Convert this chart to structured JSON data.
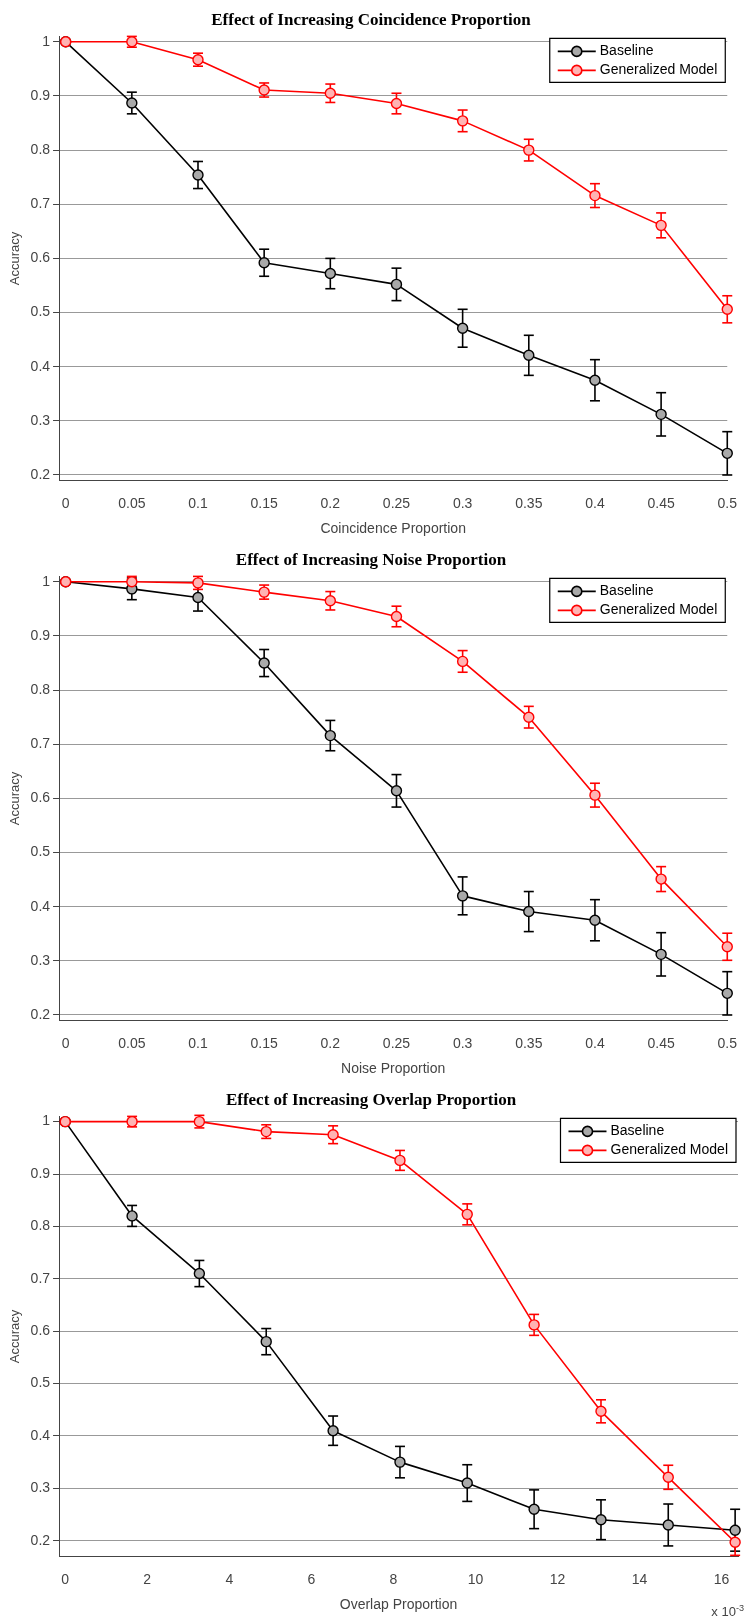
{
  "chart_data": [
    {
      "type": "line",
      "title": "Effect of Increasing Coincidence Proportion",
      "xlabel": "Coincidence Proportion",
      "ylabel": "Accuracy",
      "x": [
        0,
        0.05,
        0.1,
        0.15,
        0.2,
        0.25,
        0.3,
        0.35,
        0.4,
        0.45,
        0.5
      ],
      "xlim": [
        -0.005,
        0.5
      ],
      "xticks": [
        0,
        0.05,
        0.1,
        0.15,
        0.2,
        0.25,
        0.3,
        0.35,
        0.4,
        0.45,
        0.5
      ],
      "ylim": [
        0.19,
        1.01
      ],
      "yticks": [
        0.2,
        0.3,
        0.4,
        0.5,
        0.6,
        0.7,
        0.8,
        0.9,
        1
      ],
      "grid": "y",
      "legend": "top right",
      "marker": "circle",
      "line_style": "solid",
      "series": [
        {
          "name": "Baseline",
          "color": "#000000",
          "values": [
            1,
            0.887,
            0.754,
            0.592,
            0.572,
            0.552,
            0.471,
            0.421,
            0.375,
            0.312,
            0.24
          ],
          "errors": [
            0,
            0.02,
            0.025,
            0.025,
            0.028,
            0.03,
            0.035,
            0.037,
            0.038,
            0.04,
            0.04
          ]
        },
        {
          "name": "Generalized Model",
          "color": "#ff0000",
          "values": [
            1,
            1,
            0.967,
            0.911,
            0.905,
            0.886,
            0.854,
            0.8,
            0.716,
            0.661,
            0.506
          ],
          "errors": [
            0,
            0.01,
            0.012,
            0.013,
            0.017,
            0.019,
            0.02,
            0.02,
            0.022,
            0.023,
            0.025
          ]
        }
      ]
    },
    {
      "type": "line",
      "title": "Effect of Increasing Noise Proportion",
      "xlabel": "Noise Proportion",
      "ylabel": "Accuracy",
      "x": [
        0,
        0.05,
        0.1,
        0.15,
        0.2,
        0.25,
        0.3,
        0.35,
        0.4,
        0.45,
        0.5
      ],
      "xlim": [
        -0.005,
        0.5
      ],
      "xticks": [
        0,
        0.05,
        0.1,
        0.15,
        0.2,
        0.25,
        0.3,
        0.35,
        0.4,
        0.45,
        0.5
      ],
      "ylim": [
        0.19,
        1.01
      ],
      "yticks": [
        0.2,
        0.3,
        0.4,
        0.5,
        0.6,
        0.7,
        0.8,
        0.9,
        1
      ],
      "grid": "y",
      "legend": "top right",
      "marker": "circle",
      "line_style": "solid",
      "series": [
        {
          "name": "Baseline",
          "color": "#000000",
          "values": [
            1,
            0.987,
            0.971,
            0.85,
            0.716,
            0.614,
            0.42,
            0.391,
            0.375,
            0.312,
            0.24
          ],
          "errors": [
            0,
            0.02,
            0.025,
            0.025,
            0.028,
            0.03,
            0.035,
            0.037,
            0.038,
            0.04,
            0.04
          ]
        },
        {
          "name": "Generalized Model",
          "color": "#ff0000",
          "values": [
            1,
            1,
            0.998,
            0.981,
            0.965,
            0.936,
            0.853,
            0.75,
            0.606,
            0.451,
            0.326
          ],
          "errors": [
            0,
            0.01,
            0.012,
            0.013,
            0.017,
            0.019,
            0.02,
            0.02,
            0.022,
            0.023,
            0.025
          ]
        }
      ]
    },
    {
      "type": "line",
      "title": "Effect of Increasing Overlap Proportion",
      "xlabel": "Overlap Proportion",
      "ylabel": "Accuracy",
      "annotations": [
        "x 10$^{-3}$"
      ],
      "x": [
        0,
        1.63,
        3.27,
        4.9,
        6.53,
        8.16,
        9.8,
        11.43,
        13.06,
        14.7,
        16.33
      ],
      "xlim": [
        -0.15,
        16.4
      ],
      "xticks": [
        0,
        2,
        4,
        6,
        8,
        10,
        12,
        14,
        16
      ],
      "ylim": [
        0.17,
        1.01
      ],
      "yticks": [
        0.2,
        0.3,
        0.4,
        0.5,
        0.6,
        0.7,
        0.8,
        0.9,
        1
      ],
      "grid": "y",
      "legend": "top right",
      "marker": "circle",
      "line_style": "solid",
      "series": [
        {
          "name": "Baseline",
          "color": "#000000",
          "values": [
            1,
            0.82,
            0.71,
            0.58,
            0.41,
            0.35,
            0.31,
            0.26,
            0.24,
            0.23,
            0.22
          ],
          "errors": [
            0,
            0.02,
            0.025,
            0.025,
            0.028,
            0.03,
            0.035,
            0.037,
            0.038,
            0.04,
            0.04
          ]
        },
        {
          "name": "Generalized Model",
          "color": "#ff0000",
          "values": [
            1,
            1,
            1,
            0.981,
            0.975,
            0.926,
            0.823,
            0.612,
            0.447,
            0.321,
            0.197
          ],
          "errors": [
            0,
            0.01,
            0.012,
            0.013,
            0.017,
            0.019,
            0.02,
            0.02,
            0.022,
            0.023,
            0.025
          ]
        }
      ]
    }
  ]
}
